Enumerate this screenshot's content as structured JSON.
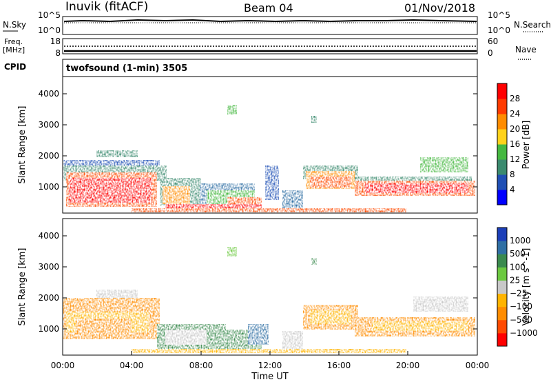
{
  "header": {
    "station": "Inuvik (fitACF)",
    "beam": "Beam 04",
    "date": "01/Nov/2018"
  },
  "status_panels": {
    "nsky": {
      "label": "N.Sky",
      "tick_top": "10^5",
      "tick_bottom": "10^0"
    },
    "nsearch": {
      "label": "N.Search",
      "tick_top": "10^5",
      "tick_bottom": "10^0"
    },
    "freq": {
      "label_line1": "Freq.",
      "label_line2": "[MHz]",
      "tick_top": "18",
      "tick_bottom": "8"
    },
    "nave": {
      "label": "Nave",
      "tick_top": "60",
      "tick_bottom": "0"
    },
    "cpid": {
      "label": "CPID",
      "value": "twofsound (1-min) 3505"
    }
  },
  "chart_data": [
    {
      "type": "heatmap",
      "panel": "power",
      "ylabel": "Slant Range [km]",
      "xlim_hours": [
        0,
        24
      ],
      "ylim_km": [
        180,
        4500
      ],
      "yticks": [
        1000,
        2000,
        3000,
        4000
      ],
      "colorbar": {
        "label": "Power [dB]",
        "ticks": [
          "4",
          "8",
          "12",
          "16",
          "20",
          "24",
          "28"
        ],
        "colors": [
          "#0000ff",
          "#1f4fb4",
          "#3a8a6e",
          "#45b840",
          "#ffd21a",
          "#ff8c00",
          "#ff3a00",
          "#ff0000"
        ]
      }
    },
    {
      "type": "heatmap",
      "panel": "velocity",
      "ylabel": "Slant Range [km]",
      "xlabel": "Time UT",
      "xlim_hours": [
        0,
        24
      ],
      "ylim_km": [
        180,
        4500
      ],
      "xticks": [
        "00:00",
        "04:00",
        "08:00",
        "12:00",
        "16:00",
        "20:00",
        "00:00"
      ],
      "yticks": [
        1000,
        2000,
        3000,
        4000
      ],
      "colorbar": {
        "label": "Velocity [m s^-1]",
        "ticks": [
          "1000",
          "500",
          "100",
          "25",
          "−25",
          "−100",
          "−500",
          "−1000"
        ],
        "colors": [
          "#1c3fb8",
          "#2f6fa4",
          "#3a8a4e",
          "#6cc940",
          "#c8c8c8",
          "#ffb400",
          "#ff8c00",
          "#ff4a00",
          "#ff0000"
        ]
      }
    }
  ]
}
